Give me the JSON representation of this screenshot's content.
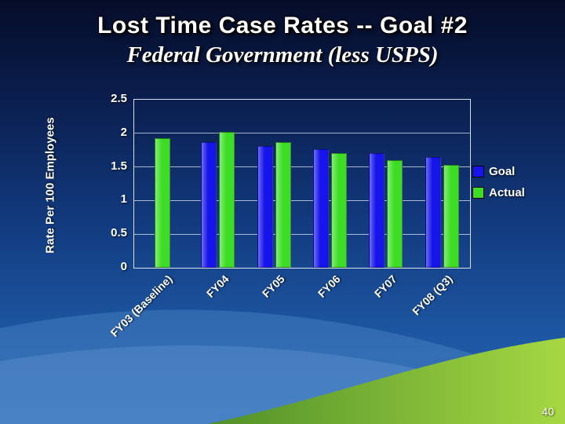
{
  "slide": {
    "title": "Lost Time Case Rates -- Goal #2",
    "subtitle": "Federal Government (less USPS)",
    "page_number": "40"
  },
  "chart_data": {
    "type": "bar",
    "title": "Lost Time Case Rates -- Goal #2, Federal Government (less USPS)",
    "xlabel": "",
    "ylabel": "Rate Per 100 Employees",
    "ylim": [
      0,
      2.5
    ],
    "yticks": [
      0,
      0.5,
      1,
      1.5,
      2,
      2.5
    ],
    "grid": true,
    "legend_position": "right",
    "categories": [
      "FY03 (Baseline)",
      "FY04",
      "FY05",
      "FY06",
      "FY07",
      "FY08 (Q3)"
    ],
    "series": [
      {
        "name": "Goal",
        "color": "#1414eb",
        "values": [
          null,
          1.87,
          1.81,
          1.76,
          1.7,
          1.65
        ]
      },
      {
        "name": "Actual",
        "color": "#3edd25",
        "values": [
          1.93,
          2.02,
          1.87,
          1.7,
          1.6,
          1.53
        ]
      }
    ]
  }
}
